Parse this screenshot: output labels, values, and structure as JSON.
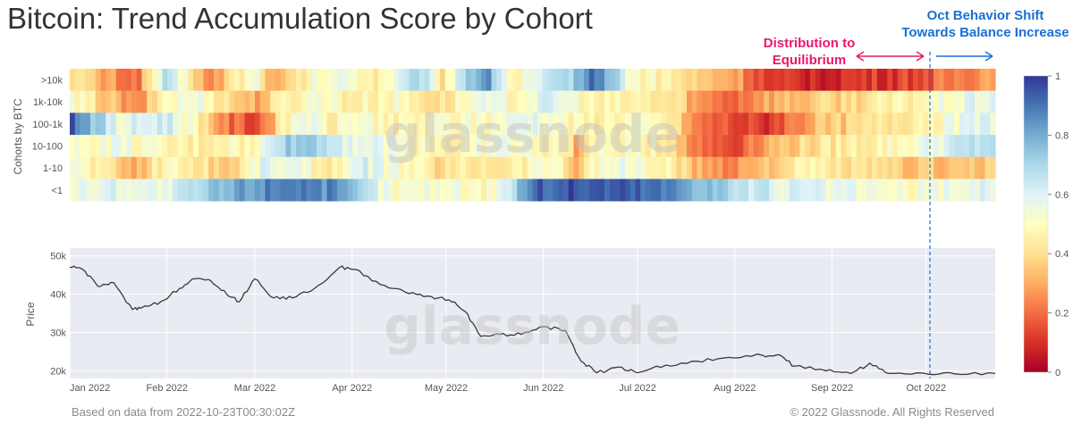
{
  "title": "Bitcoin: Trend Accumulation Score by Cohort",
  "footer": {
    "left": "Based on data from 2022-10-23T00:30:02Z",
    "right": "© 2022 Glassnode. All Rights Reserved"
  },
  "watermark": "glassnode",
  "annotations": {
    "distribution_line1": "Distribution to",
    "distribution_line2": "Equilibrium",
    "oct_line1": "Oct Behavior Shift",
    "oct_line2": "Towards Balance Increase",
    "distribution_color": "#e8196a",
    "oct_color": "#1a6fd6"
  },
  "chart_data": [
    {
      "type": "heatmap",
      "ylabel": "Cohorts by BTC",
      "rows": [
        ">10k",
        "1k-10k",
        "100-1k",
        "10-100",
        "1-10",
        "<1"
      ],
      "colorbar": {
        "range": [
          0,
          1
        ],
        "ticks": [
          "1",
          "0.8",
          "0.6",
          "0.4",
          "0.2",
          "0"
        ]
      },
      "x_range": [
        "2022-01-01",
        "2022-10-23"
      ],
      "segments": [
        [
          [
            0,
            0.45
          ],
          [
            0.03,
            0.3
          ],
          [
            0.07,
            0.2
          ],
          [
            0.1,
            0.65
          ],
          [
            0.13,
            0.45
          ],
          [
            0.15,
            0.2
          ],
          [
            0.17,
            0.4
          ],
          [
            0.2,
            0.55
          ],
          [
            0.22,
            0.25
          ],
          [
            0.26,
            0.5
          ],
          [
            0.3,
            0.55
          ],
          [
            0.33,
            0.45
          ],
          [
            0.38,
            0.7
          ],
          [
            0.4,
            0.4
          ],
          [
            0.43,
            0.75
          ],
          [
            0.45,
            0.85
          ],
          [
            0.48,
            0.45
          ],
          [
            0.5,
            0.55
          ],
          [
            0.53,
            0.65
          ],
          [
            0.57,
            0.92
          ],
          [
            0.61,
            0.5
          ],
          [
            0.65,
            0.45
          ],
          [
            0.68,
            0.35
          ],
          [
            0.72,
            0.3
          ],
          [
            0.76,
            0.08
          ],
          [
            0.9,
            0.12
          ],
          [
            1,
            0.3
          ]
        ],
        [
          [
            0,
            0.5
          ],
          [
            0.04,
            0.35
          ],
          [
            0.07,
            0.2
          ],
          [
            0.1,
            0.5
          ],
          [
            0.14,
            0.55
          ],
          [
            0.17,
            0.4
          ],
          [
            0.2,
            0.3
          ],
          [
            0.23,
            0.45
          ],
          [
            0.27,
            0.55
          ],
          [
            0.3,
            0.45
          ],
          [
            0.35,
            0.5
          ],
          [
            0.4,
            0.4
          ],
          [
            0.44,
            0.55
          ],
          [
            0.48,
            0.5
          ],
          [
            0.52,
            0.6
          ],
          [
            0.57,
            0.45
          ],
          [
            0.62,
            0.45
          ],
          [
            0.66,
            0.4
          ],
          [
            0.68,
            0.25
          ],
          [
            0.72,
            0.2
          ],
          [
            0.75,
            0.3
          ],
          [
            0.8,
            0.35
          ],
          [
            0.9,
            0.45
          ],
          [
            1,
            0.6
          ]
        ],
        [
          [
            0,
            0.95
          ],
          [
            0.05,
            0.55
          ],
          [
            0.1,
            0.65
          ],
          [
            0.14,
            0.45
          ],
          [
            0.17,
            0.2
          ],
          [
            0.2,
            0.15
          ],
          [
            0.22,
            0.35
          ],
          [
            0.25,
            0.6
          ],
          [
            0.28,
            0.45
          ],
          [
            0.31,
            0.55
          ],
          [
            0.35,
            0.45
          ],
          [
            0.4,
            0.5
          ],
          [
            0.45,
            0.5
          ],
          [
            0.5,
            0.6
          ],
          [
            0.55,
            0.45
          ],
          [
            0.6,
            0.5
          ],
          [
            0.65,
            0.45
          ],
          [
            0.68,
            0.2
          ],
          [
            0.72,
            0.15
          ],
          [
            0.75,
            0.1
          ],
          [
            0.8,
            0.3
          ],
          [
            0.9,
            0.45
          ],
          [
            1,
            0.6
          ]
        ],
        [
          [
            0,
            0.5
          ],
          [
            0.05,
            0.55
          ],
          [
            0.1,
            0.45
          ],
          [
            0.14,
            0.45
          ],
          [
            0.17,
            0.5
          ],
          [
            0.2,
            0.45
          ],
          [
            0.22,
            0.7
          ],
          [
            0.26,
            0.75
          ],
          [
            0.3,
            0.6
          ],
          [
            0.34,
            0.55
          ],
          [
            0.38,
            0.5
          ],
          [
            0.42,
            0.45
          ],
          [
            0.46,
            0.55
          ],
          [
            0.5,
            0.5
          ],
          [
            0.54,
            0.45
          ],
          [
            0.55,
            0.25
          ],
          [
            0.56,
            0.45
          ],
          [
            0.6,
            0.5
          ],
          [
            0.65,
            0.45
          ],
          [
            0.68,
            0.2
          ],
          [
            0.72,
            0.15
          ],
          [
            0.75,
            0.3
          ],
          [
            0.8,
            0.4
          ],
          [
            0.9,
            0.5
          ],
          [
            1,
            0.7
          ]
        ],
        [
          [
            0,
            0.55
          ],
          [
            0.04,
            0.4
          ],
          [
            0.07,
            0.3
          ],
          [
            0.1,
            0.5
          ],
          [
            0.13,
            0.45
          ],
          [
            0.17,
            0.35
          ],
          [
            0.21,
            0.6
          ],
          [
            0.24,
            0.55
          ],
          [
            0.28,
            0.45
          ],
          [
            0.32,
            0.6
          ],
          [
            0.36,
            0.5
          ],
          [
            0.4,
            0.4
          ],
          [
            0.44,
            0.45
          ],
          [
            0.48,
            0.45
          ],
          [
            0.52,
            0.55
          ],
          [
            0.55,
            0.3
          ],
          [
            0.56,
            0.5
          ],
          [
            0.6,
            0.55
          ],
          [
            0.65,
            0.45
          ],
          [
            0.68,
            0.3
          ],
          [
            0.72,
            0.25
          ],
          [
            0.75,
            0.35
          ],
          [
            0.8,
            0.45
          ],
          [
            0.9,
            0.35
          ],
          [
            1,
            0.35
          ]
        ],
        [
          [
            0,
            0.55
          ],
          [
            0.05,
            0.6
          ],
          [
            0.1,
            0.55
          ],
          [
            0.13,
            0.65
          ],
          [
            0.16,
            0.75
          ],
          [
            0.2,
            0.85
          ],
          [
            0.24,
            0.92
          ],
          [
            0.28,
            0.85
          ],
          [
            0.32,
            0.65
          ],
          [
            0.35,
            0.5
          ],
          [
            0.4,
            0.55
          ],
          [
            0.45,
            0.5
          ],
          [
            0.47,
            0.6
          ],
          [
            0.5,
            0.92
          ],
          [
            0.54,
            0.95
          ],
          [
            0.58,
            0.95
          ],
          [
            0.62,
            0.92
          ],
          [
            0.66,
            0.85
          ],
          [
            0.7,
            0.75
          ],
          [
            0.73,
            0.65
          ],
          [
            0.77,
            0.6
          ],
          [
            0.85,
            0.55
          ],
          [
            0.9,
            0.5
          ],
          [
            1,
            0.6
          ]
        ]
      ]
    },
    {
      "type": "line",
      "ylabel": "Price",
      "yticks": [
        "50k",
        "40k",
        "30k",
        "20k"
      ],
      "ylim": [
        18000,
        52000
      ],
      "xticks": [
        "Jan 2022",
        "Feb 2022",
        "Mar 2022",
        "Apr 2022",
        "May 2022",
        "Jun 2022",
        "Jul 2022",
        "Aug 2022",
        "Sep 2022",
        "Oct 2022"
      ],
      "x": [
        "2022-01-01",
        "2022-01-05",
        "2022-01-10",
        "2022-01-15",
        "2022-01-21",
        "2022-01-24",
        "2022-01-30",
        "2022-02-05",
        "2022-02-10",
        "2022-02-15",
        "2022-02-20",
        "2022-02-24",
        "2022-03-01",
        "2022-03-07",
        "2022-03-13",
        "2022-03-20",
        "2022-03-28",
        "2022-04-02",
        "2022-04-10",
        "2022-04-18",
        "2022-04-25",
        "2022-05-02",
        "2022-05-07",
        "2022-05-12",
        "2022-05-18",
        "2022-05-25",
        "2022-06-01",
        "2022-06-08",
        "2022-06-13",
        "2022-06-18",
        "2022-06-25",
        "2022-07-01",
        "2022-07-10",
        "2022-07-20",
        "2022-07-30",
        "2022-08-10",
        "2022-08-15",
        "2022-08-20",
        "2022-08-30",
        "2022-09-07",
        "2022-09-13",
        "2022-09-19",
        "2022-09-30",
        "2022-10-10",
        "2022-10-23"
      ],
      "y": [
        47000,
        46500,
        42000,
        43000,
        36000,
        36500,
        38000,
        41500,
        44000,
        43500,
        40000,
        38000,
        44000,
        39000,
        39000,
        41500,
        47000,
        46500,
        42500,
        40500,
        39500,
        38500,
        35500,
        29000,
        29500,
        29500,
        31500,
        30500,
        22500,
        19500,
        21000,
        19500,
        21500,
        22500,
        23500,
        24000,
        24200,
        21200,
        20000,
        19300,
        22000,
        19300,
        19400,
        19200,
        19300
      ]
    }
  ]
}
